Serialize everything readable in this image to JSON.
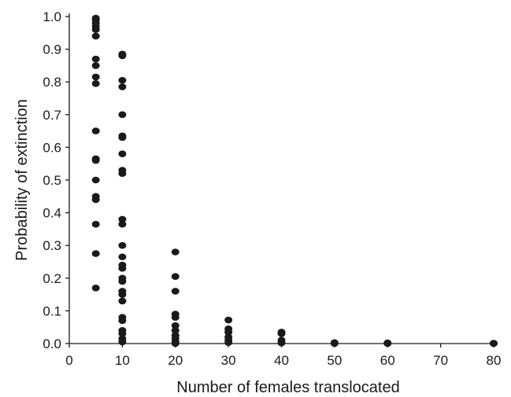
{
  "chart_data": {
    "type": "scatter",
    "title": "",
    "xlabel": "Number of females translocated",
    "ylabel": "Probability of extinction",
    "xlim": [
      0,
      80
    ],
    "ylim": [
      0,
      1.0
    ],
    "x_ticks": [
      "0",
      "10",
      "20",
      "30",
      "40",
      "50",
      "60",
      "70",
      "80"
    ],
    "y_ticks": [
      "0.0",
      "0.1",
      "0.2",
      "0.3",
      "0.4",
      "0.5",
      "0.6",
      "0.7",
      "0.8",
      "0.9",
      "1.0"
    ],
    "grid": false,
    "legend": "none",
    "marker_color": "#1a1a1a",
    "points": [
      {
        "x": 5,
        "y": 0.995
      },
      {
        "x": 5,
        "y": 0.99
      },
      {
        "x": 5,
        "y": 0.98
      },
      {
        "x": 5,
        "y": 0.97
      },
      {
        "x": 5,
        "y": 0.96
      },
      {
        "x": 5,
        "y": 0.94
      },
      {
        "x": 5,
        "y": 0.87
      },
      {
        "x": 5,
        "y": 0.85
      },
      {
        "x": 5,
        "y": 0.815
      },
      {
        "x": 5,
        "y": 0.795
      },
      {
        "x": 5,
        "y": 0.65
      },
      {
        "x": 5,
        "y": 0.565
      },
      {
        "x": 5,
        "y": 0.56
      },
      {
        "x": 5,
        "y": 0.5
      },
      {
        "x": 5,
        "y": 0.45
      },
      {
        "x": 5,
        "y": 0.44
      },
      {
        "x": 5,
        "y": 0.365
      },
      {
        "x": 5,
        "y": 0.275
      },
      {
        "x": 5,
        "y": 0.17
      },
      {
        "x": 10,
        "y": 0.885
      },
      {
        "x": 10,
        "y": 0.88
      },
      {
        "x": 10,
        "y": 0.805
      },
      {
        "x": 10,
        "y": 0.785
      },
      {
        "x": 10,
        "y": 0.7
      },
      {
        "x": 10,
        "y": 0.635
      },
      {
        "x": 10,
        "y": 0.63
      },
      {
        "x": 10,
        "y": 0.58
      },
      {
        "x": 10,
        "y": 0.53
      },
      {
        "x": 10,
        "y": 0.52
      },
      {
        "x": 10,
        "y": 0.38
      },
      {
        "x": 10,
        "y": 0.365
      },
      {
        "x": 10,
        "y": 0.3
      },
      {
        "x": 10,
        "y": 0.265
      },
      {
        "x": 10,
        "y": 0.24
      },
      {
        "x": 10,
        "y": 0.23
      },
      {
        "x": 10,
        "y": 0.2
      },
      {
        "x": 10,
        "y": 0.19
      },
      {
        "x": 10,
        "y": 0.16
      },
      {
        "x": 10,
        "y": 0.15
      },
      {
        "x": 10,
        "y": 0.13
      },
      {
        "x": 10,
        "y": 0.08
      },
      {
        "x": 10,
        "y": 0.07
      },
      {
        "x": 10,
        "y": 0.04
      },
      {
        "x": 10,
        "y": 0.03
      },
      {
        "x": 10,
        "y": 0.015
      },
      {
        "x": 10,
        "y": 0.005
      },
      {
        "x": 20,
        "y": 0.28
      },
      {
        "x": 20,
        "y": 0.205
      },
      {
        "x": 20,
        "y": 0.16
      },
      {
        "x": 20,
        "y": 0.09
      },
      {
        "x": 20,
        "y": 0.08
      },
      {
        "x": 20,
        "y": 0.055
      },
      {
        "x": 20,
        "y": 0.04
      },
      {
        "x": 20,
        "y": 0.025
      },
      {
        "x": 20,
        "y": 0.015
      },
      {
        "x": 20,
        "y": 0.005
      },
      {
        "x": 20,
        "y": 0.0
      },
      {
        "x": 30,
        "y": 0.072
      },
      {
        "x": 30,
        "y": 0.045
      },
      {
        "x": 30,
        "y": 0.035
      },
      {
        "x": 30,
        "y": 0.02
      },
      {
        "x": 30,
        "y": 0.01
      },
      {
        "x": 30,
        "y": 0.003
      },
      {
        "x": 40,
        "y": 0.035
      },
      {
        "x": 40,
        "y": 0.03
      },
      {
        "x": 40,
        "y": 0.01
      },
      {
        "x": 40,
        "y": 0.002
      },
      {
        "x": 50,
        "y": 0.003
      },
      {
        "x": 50,
        "y": 0.0
      },
      {
        "x": 60,
        "y": 0.002
      },
      {
        "x": 60,
        "y": 0.0
      },
      {
        "x": 80,
        "y": 0.001
      },
      {
        "x": 80,
        "y": 0.0
      }
    ]
  }
}
